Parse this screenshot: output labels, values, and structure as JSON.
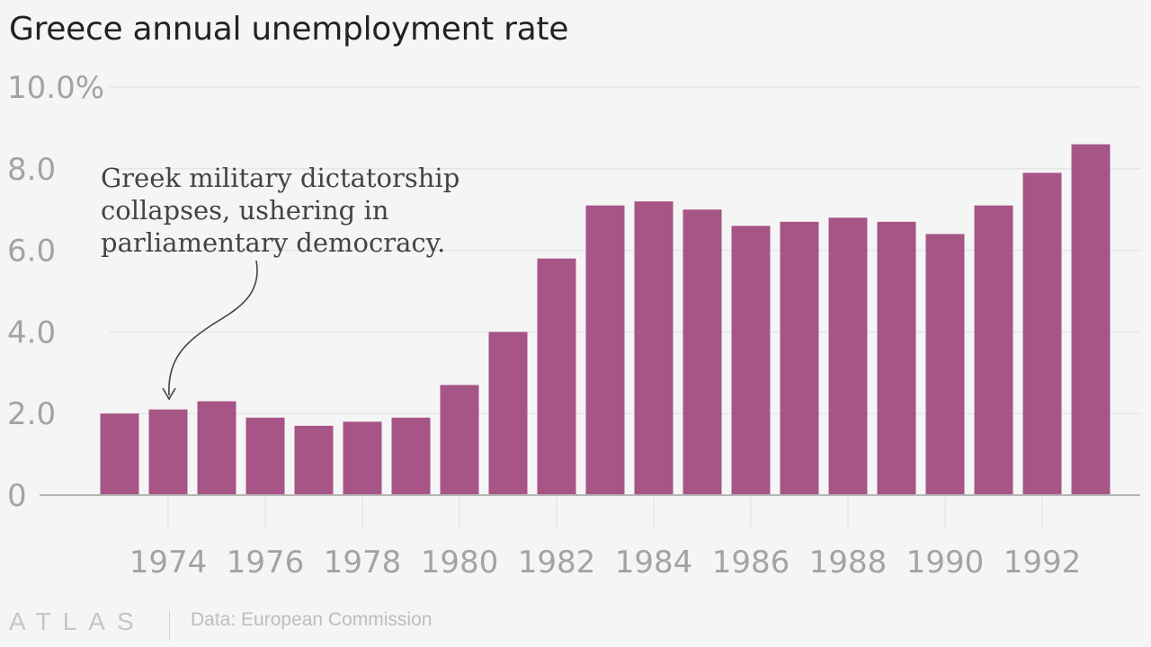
{
  "title": "Greece annual unemployment rate",
  "footer": {
    "brand": "ATLAS",
    "source": "Data: European Commission"
  },
  "colors": {
    "bar": "#a65586",
    "grid": "#e6e6e6",
    "axis": "#b5b5b5",
    "tick_text": "#a3a3a3",
    "annotation_text": "#444444"
  },
  "chart_data": {
    "type": "bar",
    "title": "Greece annual unemployment rate",
    "xlabel": "",
    "ylabel": "",
    "ylim": [
      0,
      10
    ],
    "y_ticks": [
      {
        "value": 0,
        "label": "0"
      },
      {
        "value": 2,
        "label": "2.0"
      },
      {
        "value": 4,
        "label": "4.0"
      },
      {
        "value": 6,
        "label": "6.0"
      },
      {
        "value": 8,
        "label": "8.0"
      },
      {
        "value": 10,
        "label": "10.0%"
      }
    ],
    "x_tick_labels": [
      "1974",
      "1976",
      "1978",
      "1980",
      "1982",
      "1984",
      "1986",
      "1988",
      "1990",
      "1992"
    ],
    "categories": [
      1973,
      1974,
      1975,
      1976,
      1977,
      1978,
      1979,
      1980,
      1981,
      1982,
      1983,
      1984,
      1985,
      1986,
      1987,
      1988,
      1989,
      1990,
      1991,
      1992,
      1993
    ],
    "values": [
      2.0,
      2.1,
      2.3,
      1.9,
      1.7,
      1.8,
      1.9,
      2.7,
      4.0,
      5.8,
      7.1,
      7.2,
      7.0,
      6.6,
      6.7,
      6.8,
      6.7,
      6.4,
      7.1,
      7.9,
      8.6
    ],
    "grid": true,
    "legend": "none",
    "annotations": [
      {
        "x": 1974,
        "lines": [
          "Greek military dictatorship",
          "collapses, ushering in",
          "parliamentary democracy."
        ]
      }
    ]
  }
}
